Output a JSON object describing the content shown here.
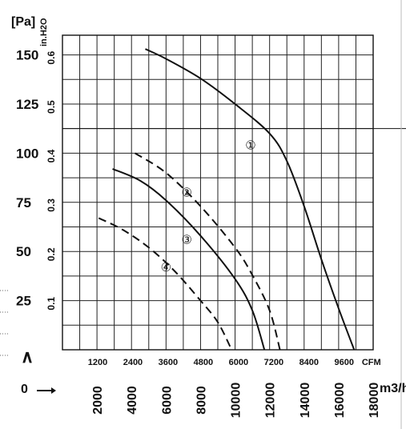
{
  "chart_data": {
    "type": "line",
    "title": "",
    "units": {
      "pressure_pa": "[Pa]",
      "pressure_inh2o": "in.H2O",
      "airflow_cfm": "CFM",
      "airflow_m3h": "m3/h"
    },
    "y_pa": {
      "ticks": [
        25,
        50,
        75,
        100,
        125,
        150
      ],
      "ylim": [
        0,
        160
      ]
    },
    "y_inh2o": {
      "ticks": [
        "0.1",
        "0.2",
        "0.3",
        "0.4",
        "0.5",
        "0.6"
      ]
    },
    "x_cfm": {
      "ticks": [
        "1200",
        "2400",
        "3600",
        "4800",
        "6000",
        "7200",
        "8400",
        "9600",
        "CFM"
      ]
    },
    "x_m3h": {
      "ticks": [
        "2000",
        "4000",
        "6000",
        "8000",
        "10000",
        "12000",
        "14000",
        "16000",
        "18000"
      ],
      "xlim": [
        0,
        18000
      ]
    },
    "corner_labels": {
      "top": "∧",
      "bottom": "0"
    },
    "grid": true,
    "series": [
      {
        "name": "①",
        "style": "solid",
        "x": [
          4800,
          6000,
          8000,
          10000,
          12000,
          13000,
          14000,
          15000,
          16000,
          16900
        ],
        "y": [
          153,
          148,
          138,
          125,
          110,
          96,
          73,
          46,
          21,
          0
        ]
      },
      {
        "name": "②",
        "style": "dashed",
        "x": [
          4200,
          6000,
          8000,
          10000,
          11000,
          12000,
          12600
        ],
        "y": [
          100,
          90,
          73,
          52,
          38,
          20,
          0
        ]
      },
      {
        "name": "③",
        "style": "solid",
        "x": [
          2900,
          4500,
          6000,
          8000,
          10000,
          11000,
          11700
        ],
        "y": [
          92,
          86,
          76,
          58,
          36,
          20,
          0
        ]
      },
      {
        "name": "④",
        "style": "dashed",
        "x": [
          2100,
          3500,
          5000,
          6500,
          8000,
          9000,
          9800
        ],
        "y": [
          67,
          61,
          52,
          40,
          25,
          14,
          0
        ]
      }
    ],
    "curve_labels": [
      {
        "text": "①",
        "x": 10900,
        "y": 104
      },
      {
        "text": "②",
        "x": 7200,
        "y": 80
      },
      {
        "text": "③",
        "x": 7200,
        "y": 56
      },
      {
        "text": "④",
        "x": 6000,
        "y": 42
      }
    ]
  }
}
